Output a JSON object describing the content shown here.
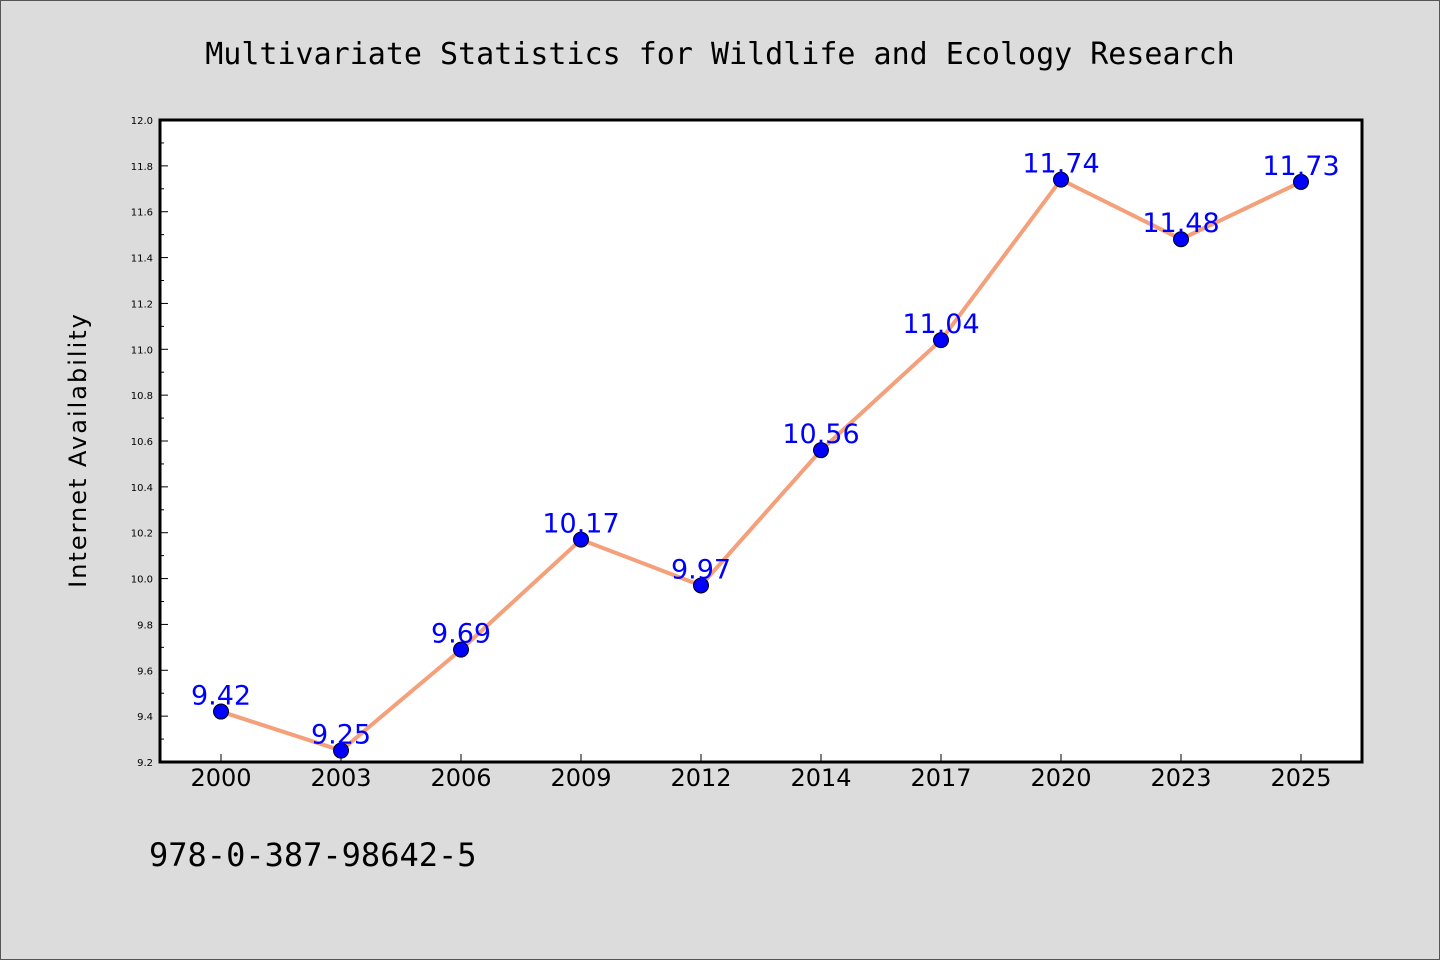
{
  "chart_data": {
    "type": "line",
    "title": "Multivariate Statistics for Wildlife and Ecology Research",
    "xlabel": "",
    "ylabel": "Internet Availability",
    "categories": [
      "2000",
      "2003",
      "2006",
      "2009",
      "2012",
      "2014",
      "2017",
      "2020",
      "2023",
      "2025"
    ],
    "series": [
      {
        "values": [
          9.42,
          9.25,
          9.69,
          10.17,
          9.97,
          10.56,
          11.04,
          11.74,
          11.48,
          11.73
        ],
        "data_labels": [
          "9.42",
          "9.25",
          "9.69",
          "10.17",
          "9.97",
          "10.56",
          "11.04",
          "11.74",
          "11.48",
          "11.73"
        ],
        "line_color": "#f4a07a",
        "marker_color": "#0000ff"
      }
    ],
    "ylim": [
      9.2,
      12.0
    ],
    "yticks": [
      "9.2",
      "9.4",
      "9.6",
      "9.8",
      "10.0",
      "10.2",
      "10.4",
      "10.6",
      "10.8",
      "11.0",
      "11.2",
      "11.4",
      "11.6",
      "11.8",
      "12.0"
    ],
    "grid": false,
    "legend": "none"
  },
  "footer": {
    "isbn": "978-0-387-98642-5"
  },
  "colors": {
    "background": "#dcdcdc",
    "plot_background": "#ffffff",
    "line": "#f4a07a",
    "marker": "#0000ff",
    "data_label": "#0000ff"
  }
}
